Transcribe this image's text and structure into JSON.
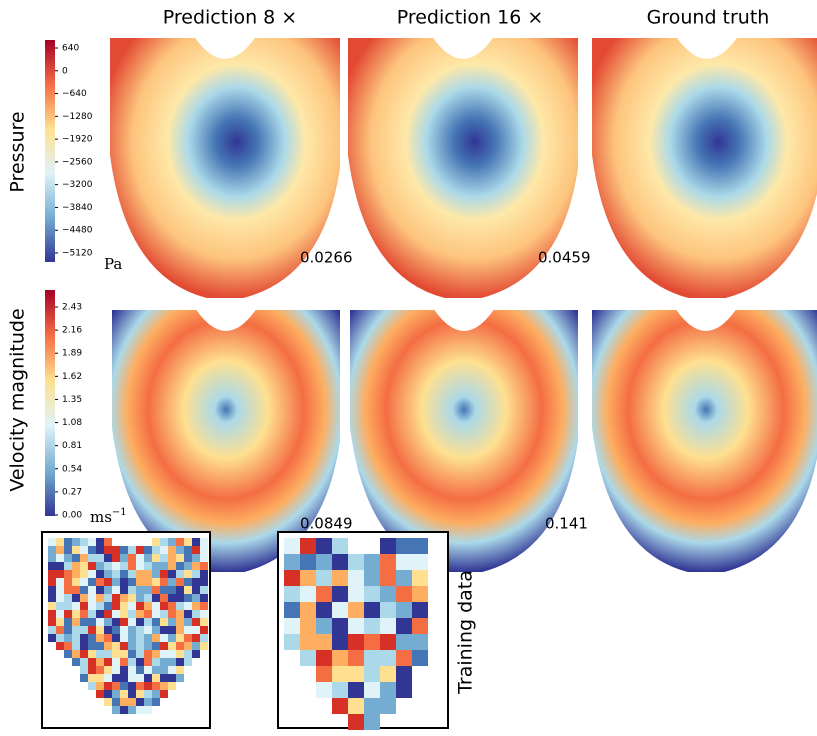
{
  "columns": [
    "Prediction 8 ×",
    "Prediction 16 ×",
    "Ground truth"
  ],
  "rows": [
    "Pressure",
    "Velocity magnitude"
  ],
  "pressure_colorbar": {
    "ticks": [
      "640",
      "0",
      "−640",
      "−1280",
      "−1920",
      "−2560",
      "−3200",
      "−3840",
      "−4480",
      "−5120"
    ],
    "unit": "Pa"
  },
  "velocity_colorbar": {
    "ticks": [
      "2.43",
      "2.16",
      "1.89",
      "1.62",
      "1.35",
      "1.08",
      "0.81",
      "0.54",
      "0.27",
      "0.00"
    ],
    "unit": {
      "base": "ms",
      "exponent": "−1"
    }
  },
  "errors": {
    "pressure": [
      "0.0266",
      "0.0459"
    ],
    "velocity": [
      "0.0849",
      "0.141"
    ]
  },
  "training_label": "Training data"
}
